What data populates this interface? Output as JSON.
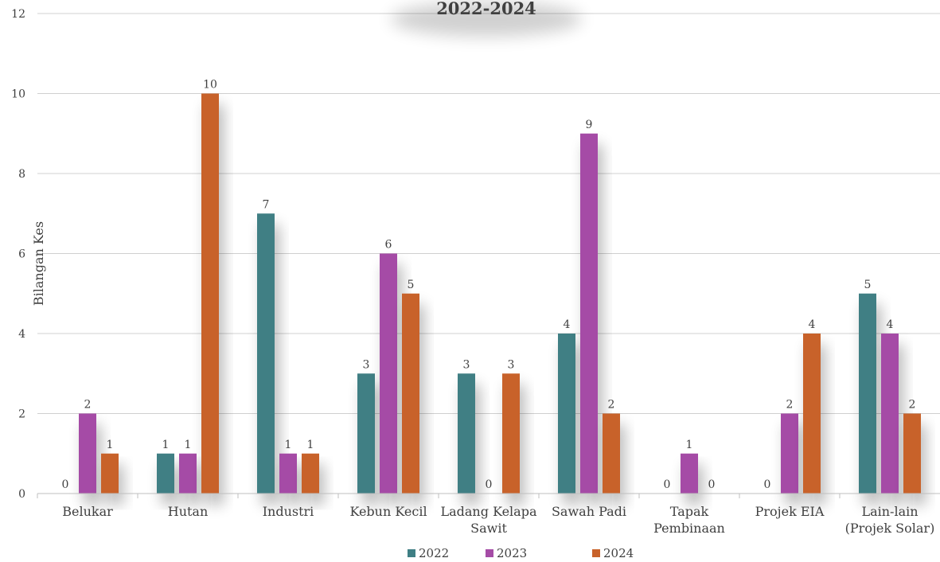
{
  "chart_data": {
    "type": "bar",
    "title": "2022-2024",
    "ylabel": "Bilangan Kes",
    "xlabel": "",
    "ylim": [
      0,
      12
    ],
    "yticks": [
      0,
      2,
      4,
      6,
      8,
      10,
      12
    ],
    "grid": true,
    "legend_position": "bottom",
    "categories": [
      [
        "Belukar"
      ],
      [
        "Hutan"
      ],
      [
        "Industri"
      ],
      [
        "Kebun Kecil"
      ],
      [
        "Ladang Kelapa",
        "Sawit"
      ],
      [
        "Sawah Padi"
      ],
      [
        "Tapak",
        "Pembinaan"
      ],
      [
        "Projek EIA"
      ],
      [
        "Lain-lain",
        "(Projek Solar)"
      ]
    ],
    "series": [
      {
        "name": "2022",
        "color": "#3f7f84",
        "values": [
          0,
          1,
          7,
          3,
          3,
          4,
          0,
          0,
          5
        ]
      },
      {
        "name": "2023",
        "color": "#a54ca6",
        "values": [
          2,
          1,
          1,
          6,
          0,
          9,
          1,
          2,
          4
        ]
      },
      {
        "name": "2024",
        "color": "#c8622a",
        "values": [
          1,
          10,
          1,
          5,
          3,
          2,
          0,
          4,
          2
        ]
      }
    ]
  }
}
